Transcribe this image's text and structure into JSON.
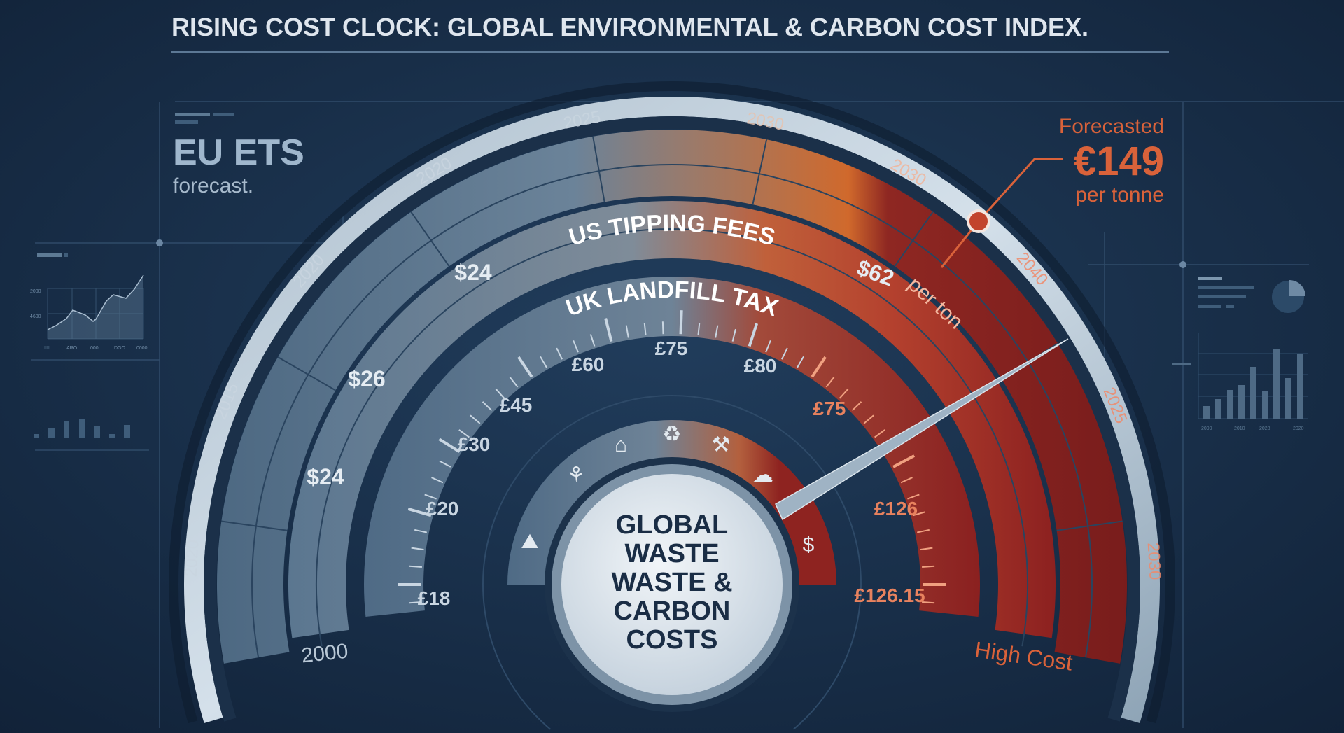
{
  "title": "RISING COST CLOCK: GLOBAL ENVIRONMENTAL & CARBON COST INDEX.",
  "left_panel": {
    "heading": "EU ETS",
    "subheading": "forecast."
  },
  "callout": {
    "label": "Forecasted",
    "value": "€149",
    "unit": "per tonne"
  },
  "gauge": {
    "center_text": [
      "GLOBAL",
      "WASTE",
      "WASTE &",
      "CARBON",
      "COSTS"
    ],
    "eu_ets_years": {
      "left_bottom": "2020",
      "left_low": "2015",
      "left_mid": "2020",
      "upper_left": "2020",
      "top_left": "2025",
      "top_right": "2030",
      "upper_right": "2030",
      "right_mid": "2040",
      "right_low": "2025",
      "right_bottom": "2030"
    },
    "us_tipping_fees": {
      "title": "US TIPPING FEES",
      "labels": {
        "top_left": "$24",
        "mid_left": "$26",
        "low_left": "$24",
        "right_value": "$62",
        "right_unit": "per ton"
      }
    },
    "uk_landfill_tax": {
      "title": "UK LANDFILL TAX",
      "labels": {
        "l18": "£18",
        "l20": "£20",
        "l30": "£30",
        "l45": "£45",
        "l60": "£60",
        "l75": "£75",
        "l80": "£80",
        "r75": "£75",
        "r126": "£126",
        "r12615": "£126.15"
      }
    },
    "icons": [
      "landfill-icon",
      "plant-icon",
      "factory-icon",
      "recycle-icon",
      "industry-icon",
      "cloud-icon",
      "money-hands-icon"
    ],
    "bottom_left_label": "2000",
    "bottom_right_label": "High Cost",
    "needle_position": "high cost zone"
  },
  "background_charts": {
    "area_chart_y_ticks": [
      "4600",
      "2000"
    ],
    "area_chart_x_ticks": [
      "IIII",
      "ARO",
      "000",
      "DGO",
      "0000"
    ],
    "bar_chart_x_ticks": [
      "2099",
      "2010",
      "2028",
      "2020"
    ]
  },
  "colors": {
    "background": "#162d48",
    "accent_orange": "#d9623a",
    "accent_red": "#8e2320",
    "steel_blue": "#5d7a94",
    "title_text": "#dfe6ee"
  }
}
